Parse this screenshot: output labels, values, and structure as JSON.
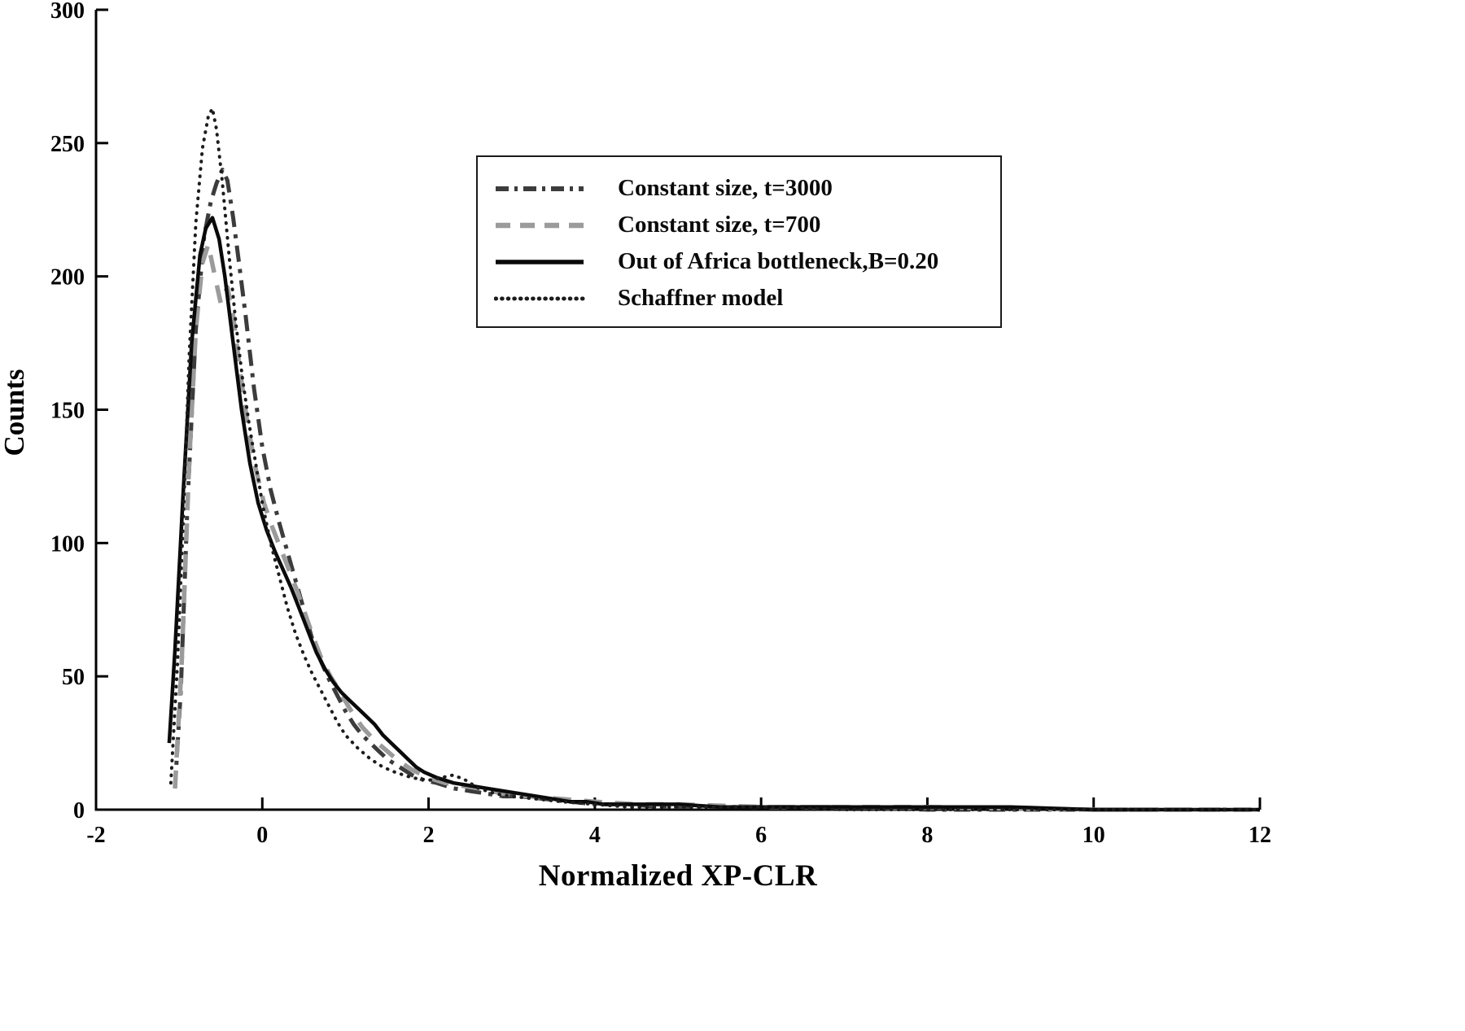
{
  "chart_data": {
    "type": "line",
    "title": "",
    "xlabel": "Normalized XP-CLR",
    "ylabel": "Counts",
    "xlim": [
      -2,
      12
    ],
    "ylim": [
      0,
      300
    ],
    "xticks": [
      -2,
      0,
      2,
      4,
      6,
      8,
      10,
      12
    ],
    "yticks": [
      0,
      50,
      100,
      150,
      200,
      250,
      300
    ],
    "grid": false,
    "legend_position": "upper center, boxed",
    "series": [
      {
        "name": "Constant size, t=3000",
        "style": "dash-dot",
        "color": "#3c3c3c",
        "x": [
          -1.05,
          -0.98,
          -0.9,
          -0.8,
          -0.7,
          -0.62,
          -0.55,
          -0.48,
          -0.42,
          -0.35,
          -0.28,
          -0.2,
          -0.1,
          0.0,
          0.1,
          0.2,
          0.3,
          0.4,
          0.5,
          0.6,
          0.7,
          0.8,
          0.9,
          1.0,
          1.1,
          1.2,
          1.3,
          1.4,
          1.5,
          1.65,
          1.8,
          1.95,
          2.1,
          2.3,
          2.5,
          2.7,
          2.9,
          3.1,
          3.4,
          3.7,
          4.0,
          4.4,
          4.8,
          5.2,
          6.0,
          7.0,
          8.0,
          10.0,
          12.0
        ],
        "y": [
          8,
          45,
          115,
          180,
          215,
          228,
          235,
          240,
          236,
          222,
          205,
          185,
          158,
          136,
          120,
          108,
          97,
          86,
          75,
          64,
          56,
          49,
          43,
          37,
          32,
          28,
          25,
          22,
          19,
          16,
          13,
          11,
          10,
          8,
          7,
          6,
          5,
          5,
          4,
          3,
          2,
          2,
          1,
          1,
          1,
          1,
          0,
          0,
          0
        ]
      },
      {
        "name": "Constant size, t=700",
        "style": "dashed",
        "color": "#9b9b9b",
        "x": [
          -1.05,
          -0.97,
          -0.88,
          -0.8,
          -0.72,
          -0.65,
          -0.57,
          -0.5,
          -0.42,
          -0.35,
          -0.27,
          -0.18,
          -0.08,
          0.02,
          0.12,
          0.22,
          0.32,
          0.42,
          0.52,
          0.62,
          0.72,
          0.82,
          0.92,
          1.05,
          1.2,
          1.35,
          1.5,
          1.65,
          1.8,
          2.0,
          2.2,
          2.4,
          2.6,
          2.9,
          3.2,
          3.6,
          4.0,
          4.5,
          5.0,
          6.0,
          7.0,
          8.0,
          10.0,
          12.0
        ],
        "y": [
          8,
          55,
          130,
          180,
          205,
          212,
          200,
          190,
          196,
          185,
          165,
          145,
          128,
          115,
          106,
          98,
          90,
          82,
          73,
          64,
          56,
          50,
          45,
          38,
          31,
          26,
          22,
          18,
          15,
          12,
          10,
          9,
          8,
          6,
          5,
          4,
          3,
          2,
          2,
          1,
          1,
          1,
          0,
          0
        ]
      },
      {
        "name": "Out of Africa bottleneck,B=0.20",
        "style": "solid",
        "color": "#0a0a0a",
        "x": [
          -1.12,
          -1.05,
          -0.95,
          -0.85,
          -0.75,
          -0.68,
          -0.6,
          -0.52,
          -0.45,
          -0.35,
          -0.25,
          -0.15,
          -0.05,
          0.05,
          0.15,
          0.25,
          0.35,
          0.45,
          0.55,
          0.65,
          0.75,
          0.85,
          0.95,
          1.05,
          1.15,
          1.25,
          1.35,
          1.45,
          1.55,
          1.65,
          1.75,
          1.85,
          1.95,
          2.1,
          2.3,
          2.5,
          2.7,
          2.9,
          3.1,
          3.3,
          3.5,
          3.7,
          3.9,
          4.1,
          4.4,
          4.7,
          5.0,
          5.5,
          6.0,
          6.5,
          7.0,
          8.0,
          9.0,
          10.0,
          11.0,
          12.0
        ],
        "y": [
          25,
          60,
          120,
          175,
          208,
          218,
          222,
          214,
          200,
          175,
          150,
          130,
          115,
          105,
          97,
          90,
          83,
          75,
          67,
          59,
          53,
          48,
          44,
          41,
          38,
          35,
          32,
          28,
          25,
          22,
          19,
          16,
          14,
          12,
          10,
          9,
          8,
          7,
          6,
          5,
          4,
          3,
          3,
          2,
          2,
          2,
          2,
          1,
          1,
          1,
          1,
          1,
          1,
          0,
          0,
          0
        ]
      },
      {
        "name": "Schaffner model",
        "style": "dotted",
        "color": "#1c1c1c",
        "x": [
          -1.1,
          -1.02,
          -0.95,
          -0.88,
          -0.8,
          -0.72,
          -0.65,
          -0.6,
          -0.55,
          -0.48,
          -0.4,
          -0.32,
          -0.24,
          -0.16,
          -0.08,
          0.0,
          0.1,
          0.2,
          0.3,
          0.4,
          0.5,
          0.6,
          0.7,
          0.8,
          0.9,
          1.0,
          1.15,
          1.3,
          1.45,
          1.6,
          1.8,
          2.0,
          2.15,
          2.3,
          2.45,
          2.6,
          2.8,
          3.0,
          3.3,
          3.6,
          4.0,
          4.4,
          4.8,
          5.2,
          6.0,
          7.0,
          8.0,
          10.0,
          12.0
        ],
        "y": [
          10,
          55,
          110,
          170,
          220,
          248,
          260,
          263,
          255,
          235,
          208,
          183,
          162,
          145,
          130,
          115,
          100,
          88,
          76,
          66,
          58,
          51,
          45,
          39,
          33,
          28,
          23,
          19,
          16,
          14,
          12,
          11,
          12,
          13,
          11,
          8,
          6,
          5,
          4,
          3,
          2,
          1,
          1,
          1,
          1,
          0,
          0,
          0,
          0
        ]
      }
    ]
  }
}
